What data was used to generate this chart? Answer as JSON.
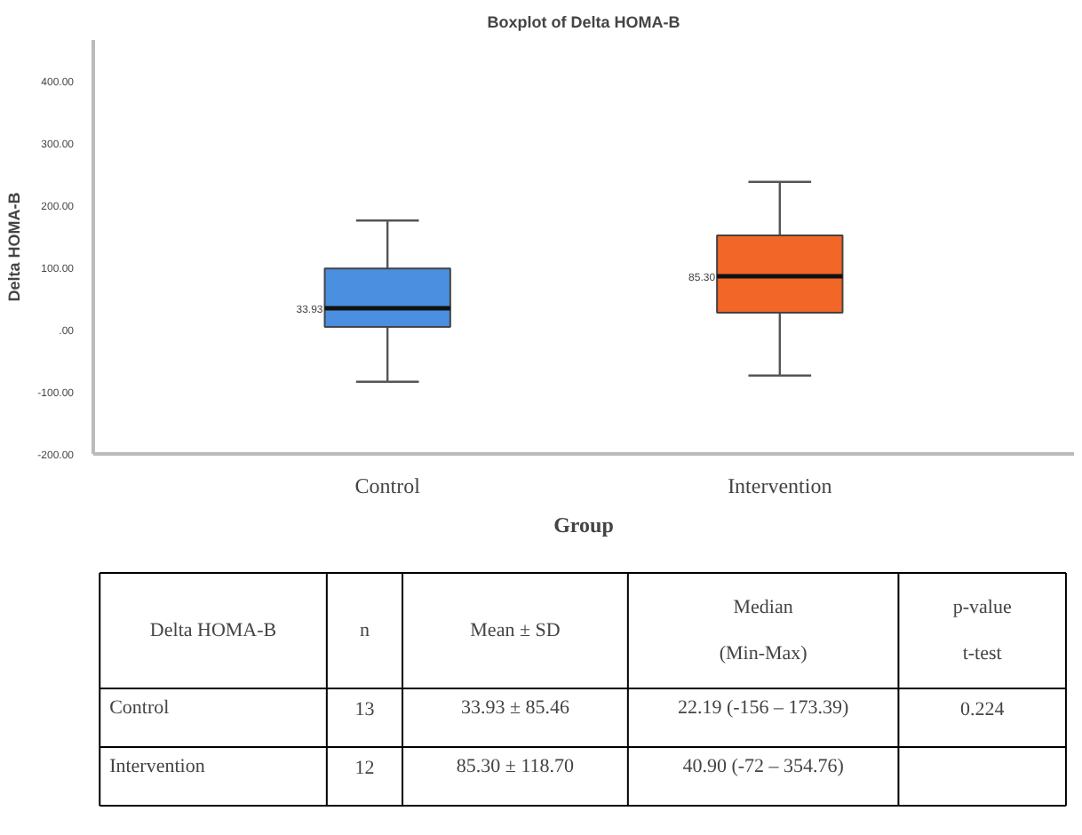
{
  "chart_data": {
    "type": "box",
    "title": "Boxplot of Delta HOMA-B",
    "xlabel": "Group",
    "ylabel": "Delta HOMA-B",
    "categories": [
      "Control",
      "Intervention"
    ],
    "colors": [
      "#4a8fe0",
      "#f26728"
    ],
    "boxes": [
      {
        "low": -84,
        "q1": 4,
        "median": 33.93,
        "q3": 98,
        "high": 175
      },
      {
        "low": -74,
        "q1": 27,
        "median": 85.3,
        "q3": 151,
        "high": 237
      }
    ],
    "ylim": [
      -200,
      465
    ],
    "yticks": [
      {
        "value": -200,
        "label": "-200.00"
      },
      {
        "value": -100,
        "label": "-100.00"
      },
      {
        "value": 0,
        "label": ".00"
      },
      {
        "value": 100,
        "label": "100.00"
      },
      {
        "value": 200,
        "label": "200.00"
      },
      {
        "value": 300,
        "label": "300.00"
      },
      {
        "value": 400,
        "label": "400.00"
      }
    ],
    "grid": false,
    "annotations": [
      "33.93",
      "85.30",
      "Delta HOMA-B",
      "n",
      "Mean ± SD",
      "Median\n(Min-Max)",
      "p-value\nt-test",
      "Control",
      "13",
      "33.93 ± 85.46",
      "22.19 (-156 – 173.39)",
      "0.224",
      "Intervention",
      "12",
      "85.30 ± 118.70",
      "40.90 (-72 – 354.76)"
    ]
  }
}
